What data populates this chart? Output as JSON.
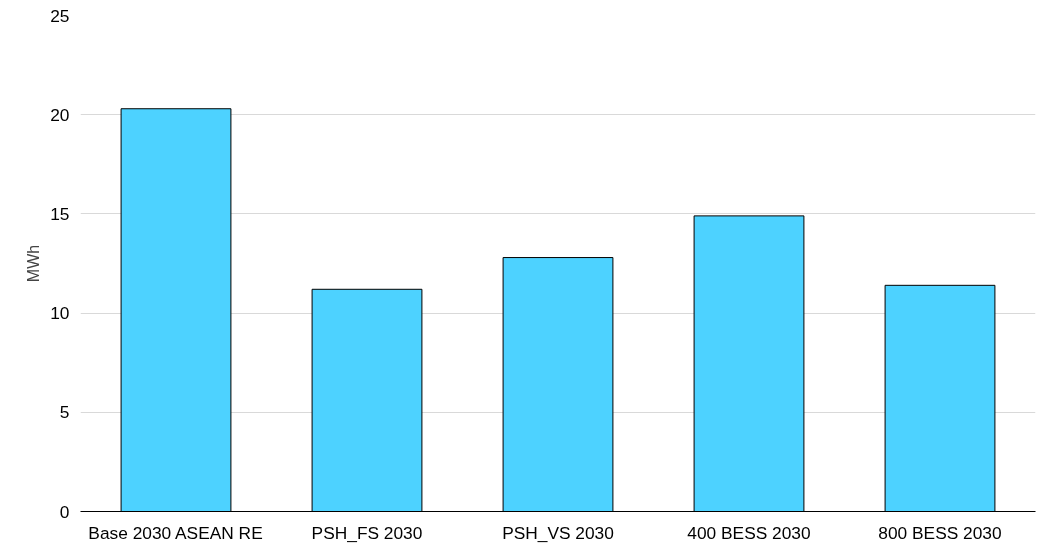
{
  "chart_data": {
    "type": "bar",
    "ylabel": "MWh",
    "categories": [
      "Base 2030 ASEAN RE",
      "PSH_FS 2030",
      "PSH_VS 2030",
      "400 BESS 2030",
      "800 BESS 2030"
    ],
    "values": [
      20.3,
      11.2,
      12.8,
      14.9,
      11.4
    ],
    "color": "#4dd2ff",
    "ylim": [
      0,
      25
    ],
    "yticks": [
      0,
      5,
      10,
      15,
      20,
      25
    ],
    "grid": "y"
  }
}
